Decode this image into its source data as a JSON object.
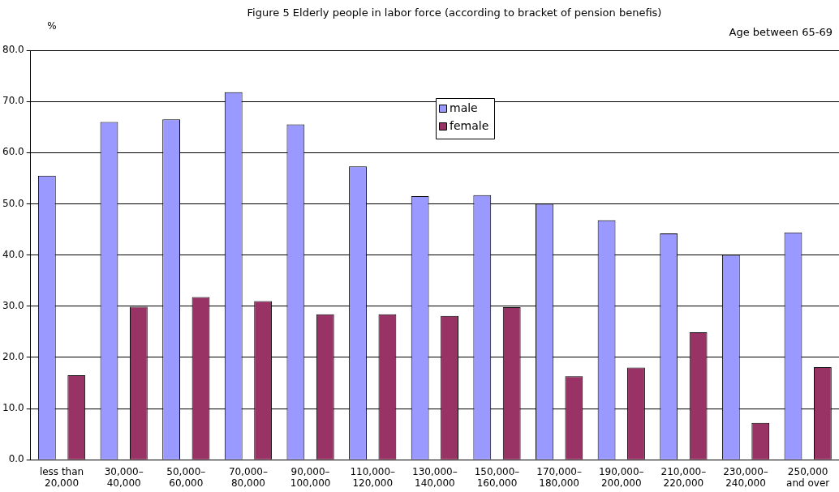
{
  "chart_data": {
    "type": "bar",
    "title": "Figure 5 Elderly people in labor force (according to bracket of pension benefis)",
    "subtitle": "Age between 65-69",
    "ylabel": "%",
    "categories": [
      "less than\n20,000",
      "30,000–\n40,000",
      "50,000–\n60,000",
      "70,000–\n80,000",
      "90,000–\n100,000",
      "110,000–\n120,000",
      "130,000–\n140,000",
      "150,000–\n160,000",
      "170,000–\n180,000",
      "190,000–\n200,000",
      "210,000–\n220,000",
      "230,000–\n240,000",
      "250,000\nand over"
    ],
    "series": [
      {
        "name": "male",
        "color": "#9999ff",
        "values": [
          55.5,
          66.0,
          66.5,
          71.8,
          65.5,
          57.3,
          51.5,
          51.7,
          50.0,
          46.8,
          44.2,
          40.0,
          44.4
        ]
      },
      {
        "name": "female",
        "color": "#993366",
        "values": [
          16.5,
          29.9,
          31.8,
          31.0,
          28.4,
          28.4,
          28.1,
          29.8,
          16.3,
          18.0,
          24.9,
          7.2,
          18.1
        ]
      }
    ],
    "ylim": [
      0,
      80
    ],
    "yticks": [
      {
        "value": 0,
        "label": "0.0"
      },
      {
        "value": 10,
        "label": "10.0"
      },
      {
        "value": 20,
        "label": "20.0"
      },
      {
        "value": 30,
        "label": "30.0"
      },
      {
        "value": 40,
        "label": "40.0"
      },
      {
        "value": 50,
        "label": "50.0"
      },
      {
        "value": 60,
        "label": "60.0"
      },
      {
        "value": 70,
        "label": "70.0"
      },
      {
        "value": 80,
        "label": "80.0"
      }
    ],
    "grid": "y",
    "legend": "top"
  }
}
